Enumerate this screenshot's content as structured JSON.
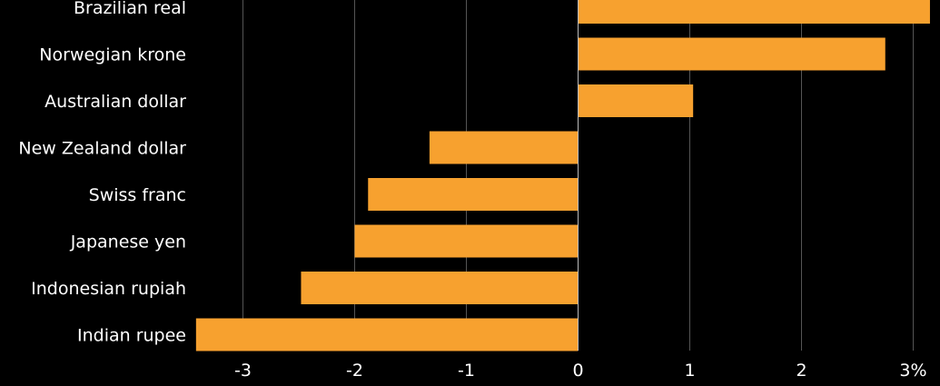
{
  "chart_data": {
    "type": "bar",
    "orientation": "horizontal",
    "categories": [
      "Brazilian real",
      "Norwegian krone",
      "Australian dollar",
      "New Zealand dollar",
      "Swiss franc",
      "Japanese yen",
      "Indonesian rupiah",
      "Indian rupee"
    ],
    "values": [
      3.15,
      2.75,
      1.03,
      -1.33,
      -1.88,
      -2.0,
      -2.48,
      -3.42
    ],
    "xlim": [
      -3.5,
      3.2
    ],
    "xticks": [
      -3,
      -2,
      -1,
      0,
      1,
      2,
      3
    ],
    "xtick_labels": [
      "-3",
      "-2",
      "-1",
      "0",
      "1",
      "2",
      "3%"
    ],
    "grid": "vertical",
    "bar_color": "#F7A12F",
    "grid_color": "#555555",
    "zero_line_color": "#BBBBBB",
    "background": "#000000",
    "text_color": "#FFFFFF"
  }
}
